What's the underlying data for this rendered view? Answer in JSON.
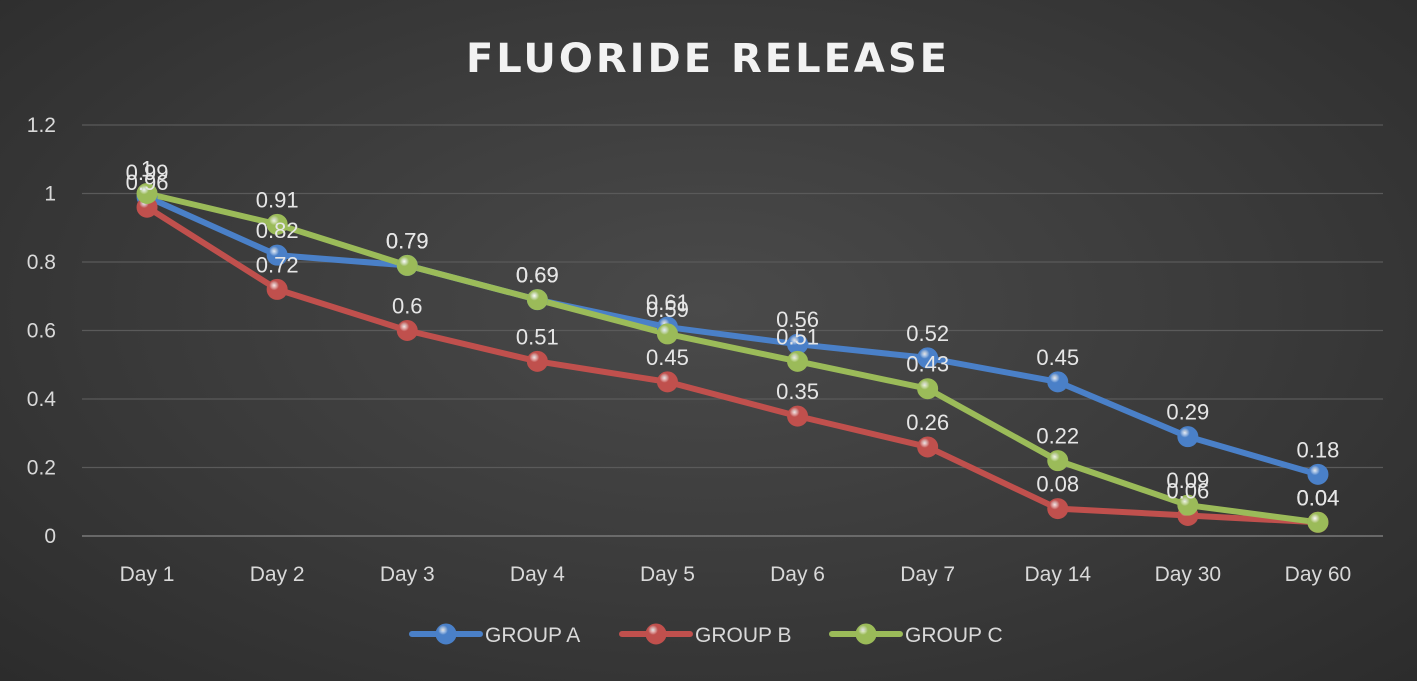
{
  "chart_data": {
    "type": "line",
    "title": "FLUORIDE RELEASE",
    "xlabel": "",
    "ylabel": "",
    "categories": [
      "Day 1",
      "Day 2",
      "Day 3",
      "Day 4",
      "Day 5",
      "Day 6",
      "Day 7",
      "Day 14",
      "Day 30",
      "Day 60"
    ],
    "ylim": [
      0,
      1.2
    ],
    "yticks": [
      "0",
      "0.2",
      "0.4",
      "0.6",
      "0.8",
      "1",
      "1.2"
    ],
    "grid": true,
    "legend_position": "bottom",
    "series": [
      {
        "name": "GROUP A",
        "color": "#4a80c8",
        "values": [
          0.99,
          0.82,
          0.79,
          0.69,
          0.61,
          0.56,
          0.52,
          0.45,
          0.29,
          0.18
        ]
      },
      {
        "name": "GROUP B",
        "color": "#c0504d",
        "values": [
          0.96,
          0.72,
          0.6,
          0.51,
          0.45,
          0.35,
          0.26,
          0.08,
          0.06,
          0.04
        ]
      },
      {
        "name": "GROUP C",
        "color": "#9bbb59",
        "values": [
          1,
          0.91,
          0.79,
          0.69,
          0.59,
          0.51,
          0.43,
          0.22,
          0.09,
          0.04
        ]
      }
    ]
  }
}
